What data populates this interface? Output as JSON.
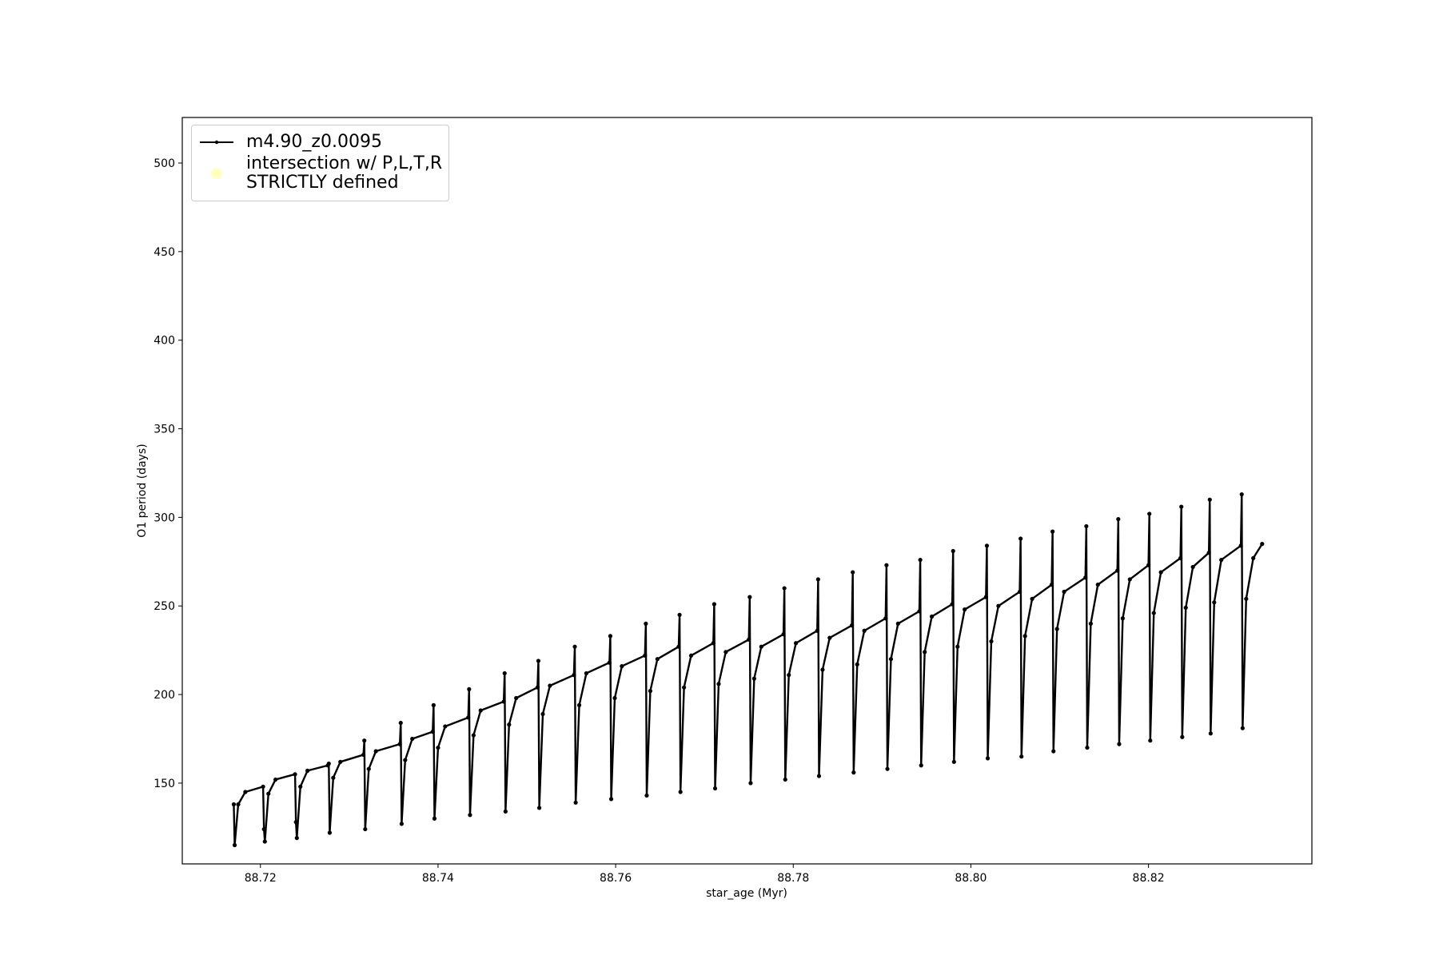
{
  "chart_data": {
    "type": "line",
    "xlabel": "star_age (Myr)",
    "ylabel": "O1 period (days)",
    "xlim": [
      88.7112,
      88.8384
    ],
    "ylim": [
      104.4,
      525.7
    ],
    "xticks": [
      88.72,
      88.74,
      88.76,
      88.78,
      {
        "value": 88.8,
        "label": "88.80"
      },
      88.82
    ],
    "yticks": [
      150,
      200,
      250,
      300,
      350,
      400,
      450,
      500
    ],
    "legend": "upper left",
    "series": [
      {
        "name": "m4.90_z0.0095",
        "color": "#000000",
        "type": "line",
        "x": [
          88.717,
          88.7171,
          88.7175,
          88.7183,
          88.7203,
          88.7204,
          88.7205,
          88.7209,
          88.7217,
          88.7239,
          88.724,
          88.7241,
          88.7245,
          88.7253,
          88.7276,
          88.7277,
          88.7278,
          88.7282,
          88.729,
          88.7316,
          88.7317,
          88.7318,
          88.7322,
          88.733,
          88.7357,
          88.7358,
          88.7359,
          88.7363,
          88.7371,
          88.7394,
          88.7395,
          88.7396,
          88.74,
          88.7408,
          88.7434,
          88.7435,
          88.7436,
          88.744,
          88.7448,
          88.7474,
          88.7475,
          88.7476,
          88.748,
          88.7488,
          88.7512,
          88.7513,
          88.7514,
          88.7518,
          88.7526,
          88.7553,
          88.7554,
          88.7555,
          88.7559,
          88.7567,
          88.7593,
          88.7594,
          88.7595,
          88.7599,
          88.7607,
          88.7633,
          88.7634,
          88.7635,
          88.7639,
          88.7647,
          88.7671,
          88.7672,
          88.7673,
          88.7677,
          88.7685,
          88.771,
          88.7711,
          88.7712,
          88.7716,
          88.7724,
          88.775,
          88.7751,
          88.7752,
          88.7756,
          88.7764,
          88.7789,
          88.779,
          88.7791,
          88.7795,
          88.7803,
          88.7827,
          88.7828,
          88.7829,
          88.7833,
          88.7841,
          88.7866,
          88.7867,
          88.7868,
          88.7872,
          88.788,
          88.7904,
          88.7905,
          88.7906,
          88.791,
          88.7918,
          88.7942,
          88.7943,
          88.7944,
          88.7948,
          88.7956,
          88.7979,
          88.798,
          88.7981,
          88.7985,
          88.7993,
          88.8017,
          88.8018,
          88.8019,
          88.8023,
          88.8031,
          88.8055,
          88.8056,
          88.8057,
          88.8061,
          88.8069,
          88.8091,
          88.8092,
          88.8093,
          88.8097,
          88.8105,
          88.8129,
          88.813,
          88.8131,
          88.8135,
          88.8143,
          88.8165,
          88.8166,
          88.8167,
          88.8171,
          88.8179,
          88.82,
          88.8201,
          88.8202,
          88.8206,
          88.8214,
          88.8236,
          88.8237,
          88.8238,
          88.8242,
          88.825,
          88.8268,
          88.8269,
          88.827,
          88.8274,
          88.8282,
          88.8304,
          88.8305,
          88.8306,
          88.831,
          88.8318,
          88.8328
        ],
        "values": [
          138,
          115,
          138,
          145,
          148,
          124,
          117,
          144,
          152,
          155,
          128,
          119,
          148,
          157,
          160,
          161,
          122,
          153,
          162,
          166,
          174,
          124,
          158,
          168,
          172,
          184,
          127,
          163,
          175,
          179,
          194,
          130,
          170,
          182,
          187,
          203,
          132,
          177,
          191,
          196,
          212,
          134,
          183,
          198,
          204,
          219,
          136,
          189,
          205,
          211,
          227,
          139,
          194,
          212,
          218,
          233,
          141,
          198,
          216,
          222,
          240,
          143,
          202,
          220,
          227,
          245,
          145,
          204,
          222,
          229,
          251,
          147,
          206,
          224,
          231,
          255,
          150,
          209,
          227,
          234,
          260,
          152,
          211,
          229,
          236,
          265,
          154,
          214,
          232,
          239,
          269,
          156,
          217,
          236,
          243,
          273,
          158,
          220,
          240,
          247,
          276,
          160,
          224,
          244,
          251,
          281,
          162,
          227,
          248,
          255,
          284,
          164,
          230,
          250,
          258,
          288,
          165,
          233,
          254,
          262,
          292,
          168,
          237,
          258,
          266,
          295,
          170,
          240,
          262,
          270,
          299,
          172,
          243,
          265,
          273,
          302,
          174,
          246,
          269,
          277,
          306,
          176,
          249,
          272,
          280,
          310,
          178,
          252,
          276,
          284,
          313,
          181,
          254,
          277,
          285
        ]
      },
      {
        "name": "intersection w/ P,L,T,R\nSTRICTLY defined",
        "color": "#ffffb0",
        "type": "scatter",
        "x": [],
        "values": []
      }
    ]
  }
}
